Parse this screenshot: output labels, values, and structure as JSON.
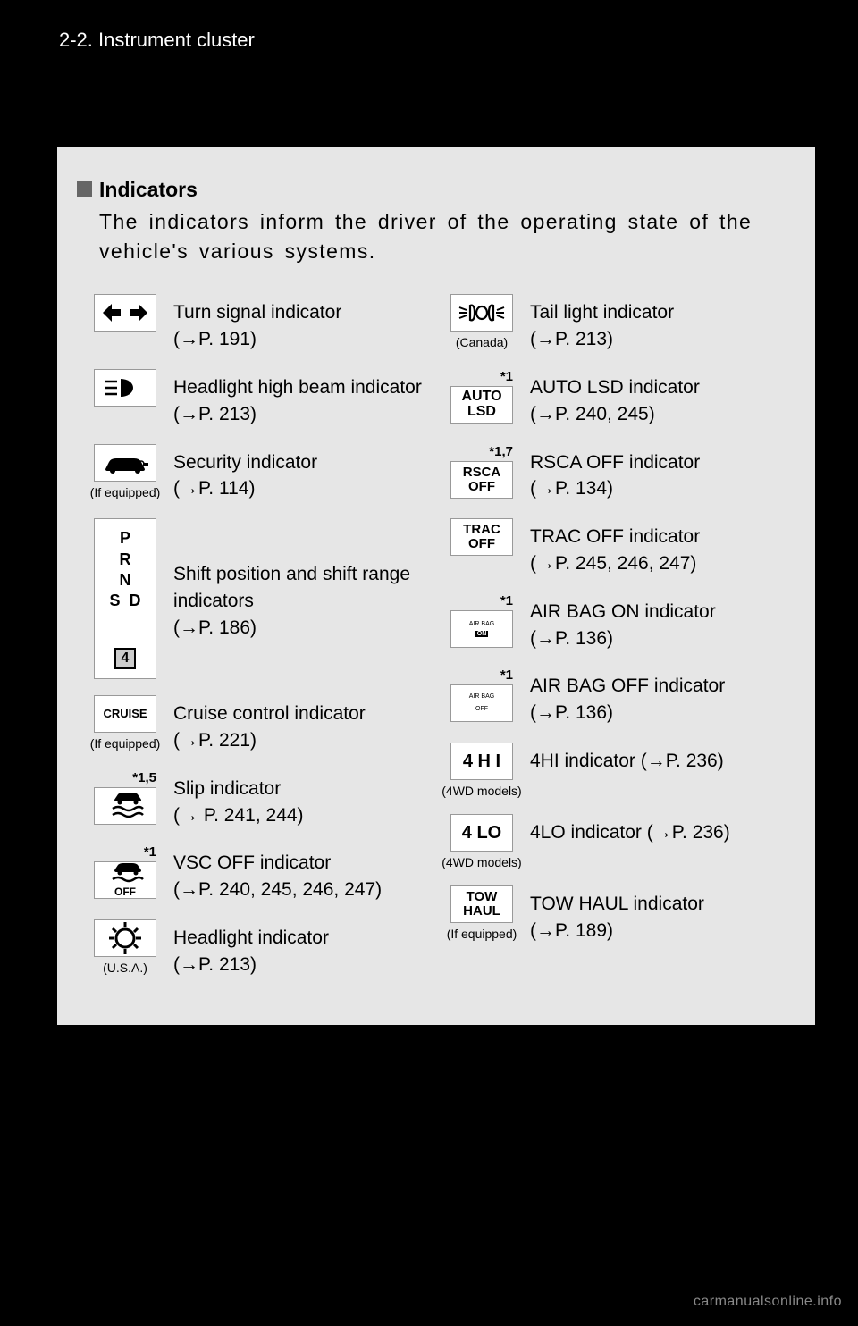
{
  "header": {
    "section": "2-2. Instrument cluster"
  },
  "title": "Indicators",
  "intro": "The indicators inform the driver of the operating state of the vehicle's various systems.",
  "left": [
    {
      "name": "turn-signal",
      "icon_type": "svg",
      "desc": "Turn signal indicator",
      "ref": "(→P. 191)",
      "note": "",
      "star": ""
    },
    {
      "name": "high-beam",
      "icon_type": "svg",
      "desc": "Headlight high beam indicator (→P. 213)",
      "ref": "",
      "note": "",
      "star": ""
    },
    {
      "name": "security",
      "icon_type": "svg",
      "desc": "Security indicator",
      "ref": "(→P. 114)",
      "note": "(If equipped)",
      "star": ""
    },
    {
      "name": "shift",
      "icon_type": "shift",
      "desc": "Shift position and shift range indicators",
      "ref": "(→P. 186)",
      "note": "",
      "star": ""
    },
    {
      "name": "cruise",
      "icon_type": "text",
      "icon_text": "CRUISE",
      "icon_fs": "13",
      "desc": "Cruise control indicator",
      "ref": "(→P. 221)",
      "note": "(If equipped)",
      "star": ""
    },
    {
      "name": "slip",
      "icon_type": "svg",
      "desc": "Slip indicator",
      "ref": "(→ P. 241, 244)",
      "note": "",
      "star": "*1,5"
    },
    {
      "name": "vsc-off",
      "icon_type": "svg",
      "desc": "VSC OFF indicator",
      "ref": "(→P. 240, 245, 246, 247)",
      "note": "",
      "star": "*1"
    },
    {
      "name": "headlight",
      "icon_type": "svg",
      "desc": "Headlight indicator",
      "ref": "(→P. 213)",
      "note": "(U.S.A.)",
      "star": ""
    }
  ],
  "right": [
    {
      "name": "tail-light",
      "icon_type": "svg",
      "desc": "Tail light indicator",
      "ref": "(→P. 213)",
      "note": "(Canada)",
      "star": ""
    },
    {
      "name": "auto-lsd",
      "icon_type": "text",
      "icon_text": "AUTO\nLSD",
      "icon_fs": "16",
      "desc": "AUTO LSD indicator",
      "ref": "(→P. 240, 245)",
      "note": "",
      "star": "*1"
    },
    {
      "name": "rsca-off",
      "icon_type": "text",
      "icon_text": "RSCA\nOFF",
      "icon_fs": "15",
      "desc": "RSCA OFF indicator",
      "ref": "(→P. 134)",
      "note": "",
      "star": "*1,7"
    },
    {
      "name": "trac-off",
      "icon_type": "text",
      "icon_text": "TRAC\nOFF",
      "icon_fs": "15",
      "desc": "TRAC OFF indicator",
      "ref": "(→P. 245, 246, 247)",
      "note": "",
      "star": ""
    },
    {
      "name": "airbag-on",
      "icon_type": "airbag-on",
      "desc": "AIR BAG ON indicator",
      "ref": "(→P. 136)",
      "note": "",
      "star": "*1"
    },
    {
      "name": "airbag-off",
      "icon_type": "airbag-off",
      "desc": "AIR BAG OFF indicator",
      "ref": "(→P. 136)",
      "note": "",
      "star": "*1"
    },
    {
      "name": "4hi",
      "icon_type": "text",
      "icon_text": "4 H I",
      "icon_fs": "20",
      "desc": "4HI indicator (→P. 236)",
      "ref": "",
      "note": "(4WD models)",
      "star": ""
    },
    {
      "name": "4lo",
      "icon_type": "text",
      "icon_text": "4 LO",
      "icon_fs": "20",
      "desc": "4LO indicator (→P. 236)",
      "ref": "",
      "note": "(4WD models)",
      "star": ""
    },
    {
      "name": "tow-haul",
      "icon_type": "text",
      "icon_text": "TOW\nHAUL",
      "icon_fs": "15",
      "desc": "TOW HAUL indicator",
      "ref": "(→P. 189)",
      "note": "(If equipped)",
      "star": ""
    }
  ],
  "shift_letters": {
    "p": "P",
    "r": "R",
    "n": "N",
    "s": "S",
    "d": "D",
    "gear": "4"
  },
  "airbag": {
    "label": "AIR  BAG",
    "on": "ON",
    "off": "OFF"
  },
  "footer": "carmanualsonline.info"
}
